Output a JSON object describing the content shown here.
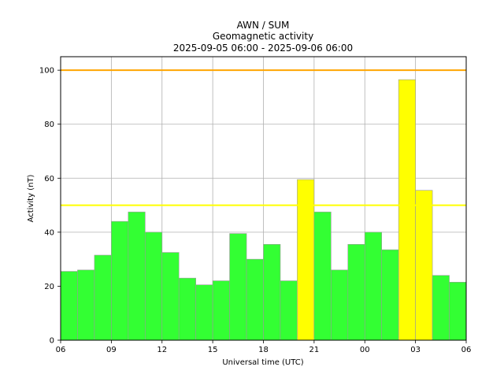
{
  "chart_data": {
    "type": "bar",
    "title": [
      "AWN / SUM",
      "Geomagnetic activity",
      "2025-09-05 06:00 - 2025-09-06 06:00"
    ],
    "xlabel": "Universal time (UTC)",
    "ylabel": "Activity (nT)",
    "xlim": [
      0,
      24
    ],
    "ylim": [
      0,
      105
    ],
    "x_ticks": [
      {
        "pos": 0,
        "label": "06"
      },
      {
        "pos": 3,
        "label": "09"
      },
      {
        "pos": 6,
        "label": "12"
      },
      {
        "pos": 9,
        "label": "15"
      },
      {
        "pos": 12,
        "label": "18"
      },
      {
        "pos": 15,
        "label": "21"
      },
      {
        "pos": 18,
        "label": "00"
      },
      {
        "pos": 21,
        "label": "03"
      },
      {
        "pos": 24,
        "label": "06"
      }
    ],
    "y_ticks": [
      0,
      20,
      40,
      60,
      80,
      100
    ],
    "grid": true,
    "categories": [
      "06",
      "07",
      "08",
      "09",
      "10",
      "11",
      "12",
      "13",
      "14",
      "15",
      "16",
      "17",
      "18",
      "19",
      "20",
      "21",
      "22",
      "23",
      "00",
      "01",
      "02",
      "03",
      "04",
      "05"
    ],
    "values": [
      25.5,
      26,
      31.5,
      44,
      47.5,
      40,
      32.5,
      23,
      20.5,
      22,
      39.5,
      30,
      35.5,
      22,
      59.5,
      47.5,
      26,
      35.5,
      40,
      33.5,
      96.5,
      55.5,
      24,
      21.5
    ],
    "threshold_lines": [
      {
        "value": 100,
        "color": "#ffa500"
      },
      {
        "value": 50,
        "color": "#ffff00"
      }
    ],
    "bar_colors": {
      "normal": "#33ff33",
      "elevated": "#ffff00",
      "edge": "#999999"
    },
    "elevated_threshold": 50
  }
}
